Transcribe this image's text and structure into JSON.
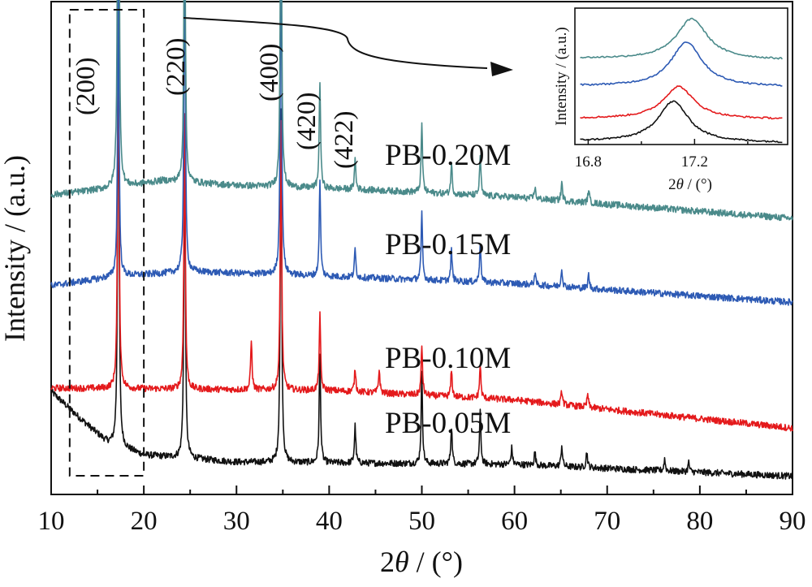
{
  "chart_data": {
    "type": "line",
    "xlabel_prefix": "2",
    "xlabel_theta": "θ",
    "xlabel_suffix": " / (°)",
    "ylabel": "Intensity / (a.u.)",
    "xlim": [
      10,
      90
    ],
    "x_ticks": [
      "10",
      "20",
      "30",
      "40",
      "50",
      "60",
      "70",
      "80",
      "90"
    ],
    "y_ticks_shown": false,
    "grid": false,
    "series": [
      {
        "name": "PB-0.05M",
        "color": "#111111",
        "baseline": [
          [
            10,
            1.55
          ],
          [
            13,
            1.0
          ],
          [
            16,
            0.48
          ],
          [
            20,
            0.2
          ],
          [
            30,
            0.05
          ],
          [
            60,
            0
          ],
          [
            90,
            -0.25
          ]
        ],
        "peaks": [
          [
            17.25,
            9.1
          ],
          [
            24.4,
            7.2
          ],
          [
            34.8,
            7.5
          ],
          [
            39.0,
            2.3
          ],
          [
            42.8,
            0.8
          ],
          [
            50.0,
            1.9
          ],
          [
            53.2,
            0.8
          ],
          [
            56.3,
            1.1
          ],
          [
            59.7,
            0.35
          ],
          [
            62.2,
            0.3
          ],
          [
            65.1,
            0.45
          ],
          [
            67.8,
            0.35
          ],
          [
            76.2,
            0.25
          ],
          [
            78.8,
            0.2
          ]
        ]
      },
      {
        "name": "PB-0.10M",
        "color": "#e41a1c",
        "baseline": [
          [
            10,
            0
          ],
          [
            40,
            -0.05
          ],
          [
            60,
            -0.25
          ],
          [
            90,
            -0.85
          ]
        ],
        "peaks": [
          [
            17.25,
            8.3
          ],
          [
            24.4,
            5.9
          ],
          [
            31.6,
            1.05
          ],
          [
            34.8,
            5.7
          ],
          [
            39.0,
            1.6
          ],
          [
            42.8,
            0.5
          ],
          [
            45.4,
            0.5
          ],
          [
            50.0,
            1.05
          ],
          [
            53.2,
            0.55
          ],
          [
            56.3,
            0.7
          ],
          [
            65.1,
            0.3
          ],
          [
            67.9,
            0.28
          ]
        ]
      },
      {
        "name": "PB-0.15M",
        "color": "#2d5ab4",
        "baseline": [
          [
            10,
            0
          ],
          [
            17,
            0.2
          ],
          [
            25,
            0.3
          ],
          [
            40,
            0.2
          ],
          [
            60,
            0.05
          ],
          [
            90,
            -0.35
          ]
        ],
        "peaks": [
          [
            17.25,
            6.3
          ],
          [
            24.4,
            7.2
          ],
          [
            34.8,
            7.5
          ],
          [
            39.0,
            2.0
          ],
          [
            42.8,
            0.6
          ],
          [
            50.0,
            1.4
          ],
          [
            53.2,
            0.65
          ],
          [
            56.3,
            0.85
          ],
          [
            62.2,
            0.25
          ],
          [
            65.1,
            0.4
          ],
          [
            68.0,
            0.3
          ]
        ]
      },
      {
        "name": "PB-0.20M",
        "color": "#4a8a8a",
        "baseline": [
          [
            10,
            0
          ],
          [
            17,
            0.15
          ],
          [
            22,
            0.3
          ],
          [
            30,
            0.2
          ],
          [
            45,
            0.1
          ],
          [
            60,
            -0.05
          ],
          [
            90,
            -0.5
          ]
        ],
        "peaks": [
          [
            17.25,
            11.8
          ],
          [
            24.4,
            7.0
          ],
          [
            34.8,
            7.5
          ],
          [
            39.0,
            2.3
          ],
          [
            42.8,
            0.65
          ],
          [
            50.0,
            1.45
          ],
          [
            53.2,
            0.65
          ],
          [
            56.3,
            0.85
          ],
          [
            62.2,
            0.25
          ],
          [
            65.1,
            0.4
          ],
          [
            68.0,
            0.3
          ]
        ]
      }
    ],
    "peak_labels": [
      {
        "text": "(200)",
        "x": 17.25
      },
      {
        "text": "(220)",
        "x": 24.4
      },
      {
        "text": "(400)",
        "x": 34.8
      },
      {
        "text": "(420)",
        "x": 39.0
      },
      {
        "text": "(422)",
        "x": 42.8
      }
    ],
    "highlight_box_x": [
      12,
      20
    ],
    "inset": {
      "ylabel": "Intensity / (a.u.)",
      "xlabel_prefix": "2",
      "xlabel_theta": "θ",
      "xlabel_suffix": " / (°)",
      "xlim": [
        16.75,
        17.55
      ],
      "x_ticks": [
        "16.8",
        "17.2"
      ],
      "series_peaks": [
        {
          "center": 17.12,
          "height": 1.0
        },
        {
          "center": 17.14,
          "height": 0.8
        },
        {
          "center": 17.17,
          "height": 1.1
        },
        {
          "center": 17.19,
          "height": 1.0
        }
      ]
    }
  }
}
